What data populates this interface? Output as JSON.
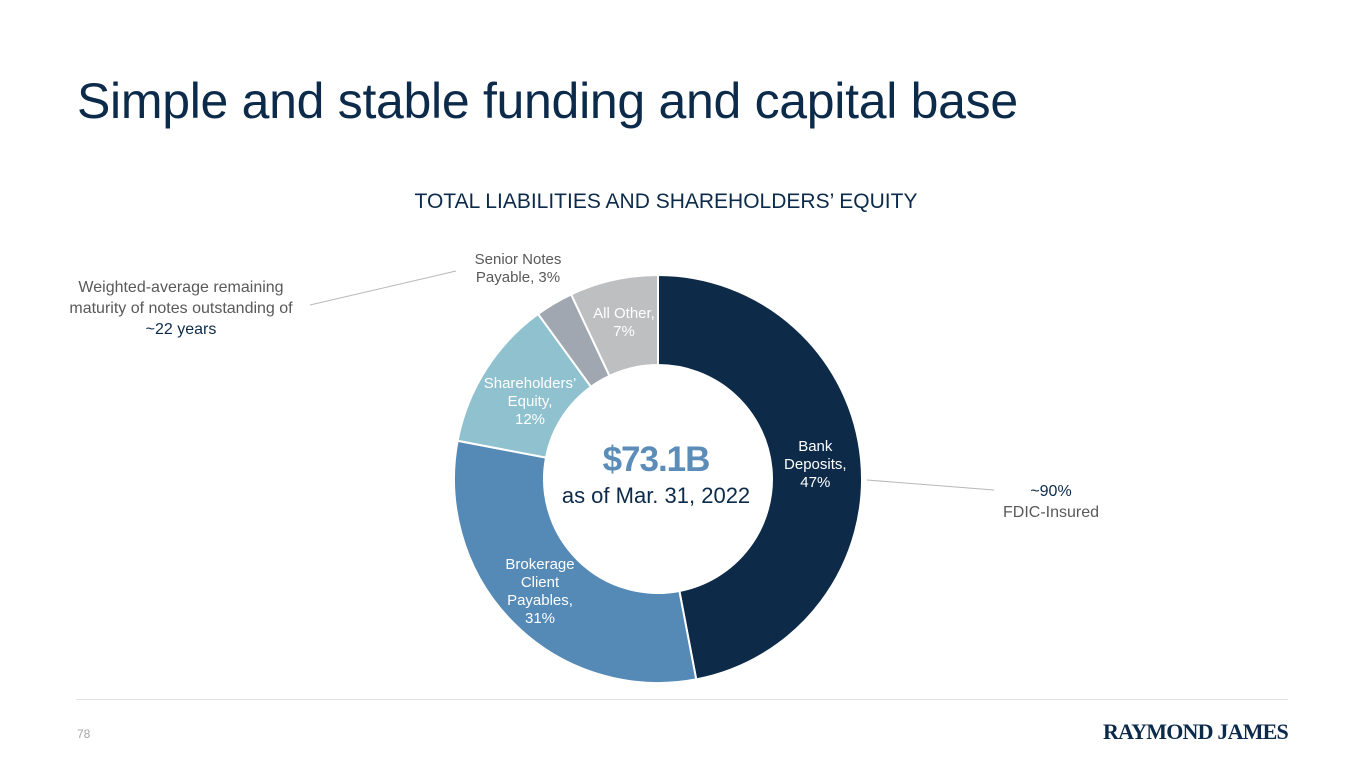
{
  "page": {
    "title": "Simple and stable funding and capital base",
    "page_number": "78",
    "logo_text": "RAYMOND JAMES"
  },
  "chart_data": {
    "type": "pie",
    "variant": "donut",
    "title": "TOTAL LIABILITIES AND SHAREHOLDERS’ EQUITY",
    "center_value": "$73.1B",
    "center_subtitle": "as of Mar. 31, 2022",
    "slices": [
      {
        "label_lines": [
          "Bank",
          "Deposits,",
          "47%"
        ],
        "value": 47,
        "color": "#0d2a49",
        "text_color": "#ffffff"
      },
      {
        "label_lines": [
          "Brokerage",
          "Client",
          "Payables,",
          "31%"
        ],
        "value": 31,
        "color": "#5589b6",
        "text_color": "#ffffff"
      },
      {
        "label_lines": [
          "Shareholders’",
          "Equity,",
          "12%"
        ],
        "value": 12,
        "color": "#8fc1cf",
        "text_color": "#ffffff"
      },
      {
        "label_lines": [
          "Senior Notes",
          "Payable, 3%"
        ],
        "value": 3,
        "color": "#a0a7b0",
        "text_color": "#595959"
      },
      {
        "label_lines": [
          "All Other,",
          "7%"
        ],
        "value": 7,
        "color": "#bebfc1",
        "text_color": "#ffffff"
      }
    ]
  },
  "annotations": {
    "left_text": "Weighted-average remaining maturity of notes outstanding of",
    "left_highlight": "~22 years",
    "right_pct": "~90%",
    "right_text": "FDIC-Insured"
  }
}
